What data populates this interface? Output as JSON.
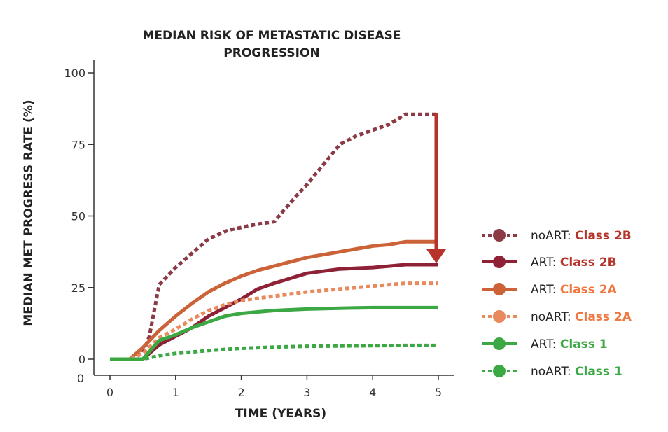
{
  "chart_data": {
    "type": "line",
    "title": [
      "MEDIAN RISK OF METASTATIC DISEASE",
      "PROGRESSION"
    ],
    "xlabel": "TIME (YEARS)",
    "ylabel": "MEDIAN MET PROGRESS RATE (%)",
    "xlim": [
      0,
      5
    ],
    "ylim": [
      0,
      100
    ],
    "x_ticks": [
      "0",
      "1",
      "2",
      "3",
      "4",
      "5"
    ],
    "y_ticks": [
      "0",
      "25",
      "50",
      "75",
      "100"
    ],
    "extra_y_tick": "0",
    "grid": false,
    "legend_position": "right",
    "series": [
      {
        "name": "noART: Class 2B",
        "prefix": "noART:",
        "class_label": "Class 2B",
        "color": "#8b3a46",
        "label_color": "#b5332b",
        "style": "dotted",
        "x": [
          0,
          0.3,
          0.5,
          0.6,
          0.75,
          1.0,
          1.2,
          1.5,
          1.8,
          2.0,
          2.2,
          2.5,
          2.8,
          3.0,
          3.25,
          3.5,
          3.75,
          4.0,
          4.25,
          4.5,
          5.0
        ],
        "y": [
          0,
          0,
          2,
          8,
          26,
          32,
          36,
          42,
          45,
          46,
          47,
          48,
          56,
          61,
          68,
          75,
          78,
          80,
          82,
          85.5,
          85.5
        ]
      },
      {
        "name": "ART: Class 2B",
        "prefix": "ART:",
        "class_label": "Class 2B",
        "color": "#8e2136",
        "label_color": "#b5332b",
        "style": "solid",
        "x": [
          0,
          0.5,
          0.75,
          1.0,
          1.25,
          1.5,
          1.75,
          2.0,
          2.25,
          2.5,
          3.0,
          3.5,
          4.0,
          4.25,
          4.5,
          5.0
        ],
        "y": [
          0,
          0,
          5,
          8,
          11,
          15,
          18,
          21,
          24.5,
          26.5,
          30,
          31.5,
          32,
          32.5,
          33,
          33
        ]
      },
      {
        "name": "ART: Class 2A",
        "prefix": "ART:",
        "class_label": "Class 2A",
        "color": "#cc6238",
        "label_color": "#f07840",
        "style": "solid",
        "x": [
          0,
          0.3,
          0.5,
          0.75,
          1.0,
          1.25,
          1.5,
          1.75,
          2.0,
          2.25,
          2.5,
          2.75,
          3.0,
          3.25,
          3.5,
          3.75,
          4.0,
          4.25,
          4.5,
          5.0
        ],
        "y": [
          0,
          0,
          4,
          10,
          15,
          19.5,
          23.5,
          26.5,
          29,
          31,
          32.5,
          34,
          35.5,
          36.5,
          37.5,
          38.5,
          39.5,
          40,
          41,
          41
        ]
      },
      {
        "name": "noART: Class 2A",
        "prefix": "noART:",
        "class_label": "Class 2A",
        "color": "#e88a5e",
        "label_color": "#f07840",
        "style": "dotted",
        "x": [
          0,
          0.3,
          0.5,
          0.75,
          1.0,
          1.25,
          1.5,
          1.75,
          2.0,
          2.5,
          3.0,
          3.5,
          4.0,
          4.5,
          5.0
        ],
        "y": [
          0,
          0,
          2,
          7.5,
          10.5,
          14,
          17,
          19,
          20.5,
          22,
          23.5,
          24.5,
          25.5,
          26.5,
          26.5
        ]
      },
      {
        "name": "ART: Class 1",
        "prefix": "ART:",
        "class_label": "Class 1",
        "color": "#3ca844",
        "label_color": "#3ca844",
        "style": "solid",
        "x": [
          0,
          0.5,
          0.75,
          1.0,
          1.25,
          1.5,
          1.75,
          2.0,
          2.25,
          2.5,
          3.0,
          3.5,
          4.0,
          4.5,
          5.0
        ],
        "y": [
          0,
          0,
          6.5,
          8.5,
          11,
          13,
          15,
          16,
          16.5,
          17,
          17.5,
          17.8,
          18,
          18,
          18
        ]
      },
      {
        "name": "noART: Class 1",
        "prefix": "noART:",
        "class_label": "Class 1",
        "color": "#3ca844",
        "label_color": "#3ca844",
        "style": "dotted",
        "x": [
          0,
          0.5,
          0.75,
          1.0,
          1.5,
          2.0,
          2.5,
          3.0,
          3.5,
          4.0,
          4.5,
          5.0
        ],
        "y": [
          0,
          0,
          1.2,
          2,
          3,
          3.8,
          4.2,
          4.5,
          4.6,
          4.7,
          4.8,
          4.8
        ]
      }
    ],
    "annotation": {
      "type": "arrow",
      "color": "#b5332b",
      "x": 5.0,
      "y_from": 85.5,
      "y_to": 34
    }
  }
}
